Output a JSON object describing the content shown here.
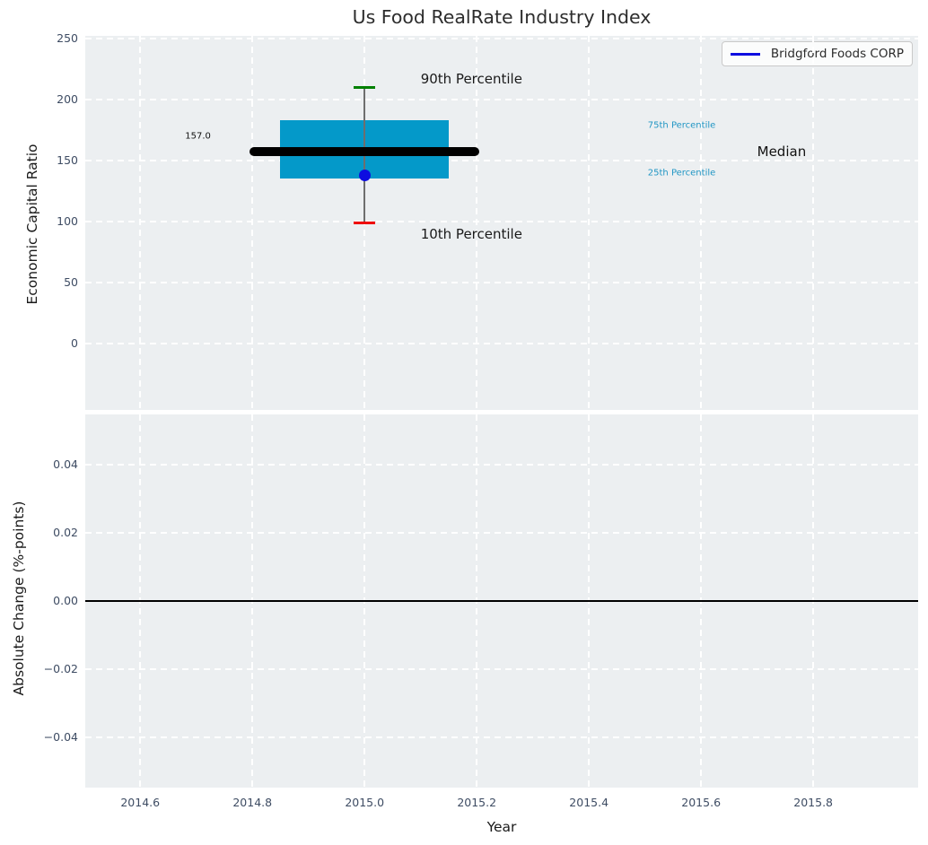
{
  "title": "Us Food RealRate Industry Index",
  "colors": {
    "figure_bg": "#ffffff",
    "axes_bg": "#eceff1",
    "grid": "#ffffff",
    "tick_label": "#3e4c63",
    "axis_label": "#1a1a1a",
    "box_fill": "#0499c9",
    "median_line": "#000000",
    "whisker": "#6e6e6e",
    "p90_cap": "#008000",
    "p10_cap": "#ee0000",
    "company_blue": "#0d0de0",
    "percentile_text": "#2196c4",
    "zero_line": "#000000",
    "legend_border": "#c9c9c9"
  },
  "legend": {
    "label": "Bridgford Foods CORP"
  },
  "chart_data": [
    {
      "type": "box",
      "title": "Us Food RealRate Industry Index",
      "ylabel": "Economic Capital Ratio",
      "xlim": [
        2014.502,
        2015.987
      ],
      "ylim": [
        -54.4,
        252.2
      ],
      "grid": true,
      "legend": {
        "label": "Bridgford Foods CORP",
        "position": "upper-right"
      },
      "yticks": {
        "values": [
          0,
          50,
          100,
          150,
          200,
          250
        ],
        "labels": [
          "0",
          "50",
          "100",
          "150",
          "200",
          "250"
        ]
      },
      "box": {
        "x": 2015.0,
        "x_left": 2014.85,
        "x_right": 2015.15,
        "p10": 99,
        "p25": 135,
        "median": 157.0,
        "p75": 183,
        "p90": 210,
        "median_line_x1": 2014.795,
        "median_line_x2": 2015.205,
        "cap_half_width": 0.019,
        "company_point": {
          "name": "Bridgford Foods CORP",
          "x": 2015.0,
          "y": 138
        }
      },
      "annotations": [
        {
          "id": "median-value-label",
          "text": "157.0",
          "x": 2014.68,
          "y": 170,
          "color": "#111111",
          "size": 10
        },
        {
          "id": "p90-label",
          "text": "90th Percentile",
          "x": 2015.1,
          "y": 217,
          "color": "#1a1a1a",
          "size": 15
        },
        {
          "id": "p10-label",
          "text": "10th Percentile",
          "x": 2015.1,
          "y": 90,
          "color": "#1a1a1a",
          "size": 15
        },
        {
          "id": "p75-label",
          "text": "75th Percentile",
          "x": 2015.505,
          "y": 179,
          "color": "#2196c4",
          "size": 10
        },
        {
          "id": "p25-label",
          "text": "25th Percentile",
          "x": 2015.505,
          "y": 140,
          "color": "#2196c4",
          "size": 10
        },
        {
          "id": "median-label",
          "text": "Median",
          "x": 2015.7,
          "y": 157,
          "color": "#111111",
          "size": 15
        }
      ]
    },
    {
      "type": "line",
      "ylabel": "Absolute Change (%-points)",
      "xlabel": "Year",
      "xlim": [
        2014.502,
        2015.987
      ],
      "ylim": [
        -0.0547,
        0.0547
      ],
      "grid": true,
      "yticks": {
        "values": [
          -0.04,
          -0.02,
          0,
          0.02,
          0.04
        ],
        "labels": [
          "−0.04",
          "−0.02",
          "0.00",
          "0.02",
          "0.04"
        ]
      },
      "xticks": {
        "values": [
          2014.6,
          2014.8,
          2015.0,
          2015.2,
          2015.4,
          2015.6,
          2015.8
        ],
        "labels": [
          "2014.6",
          "2014.8",
          "2015.0",
          "2015.2",
          "2015.4",
          "2015.6",
          "2015.8"
        ]
      },
      "zero_line": {
        "y": 0.0
      }
    }
  ]
}
